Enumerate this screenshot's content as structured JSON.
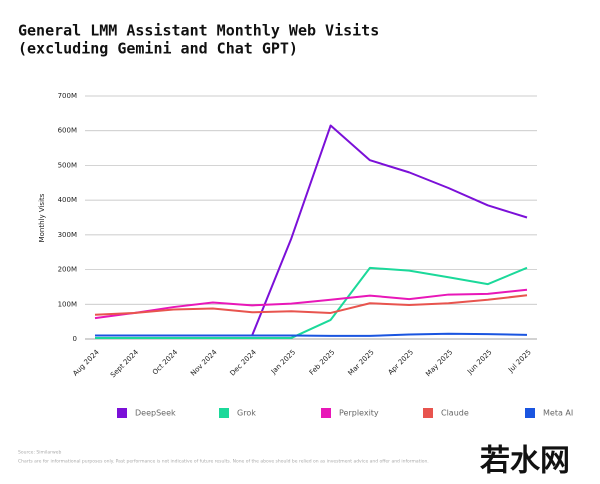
{
  "chart_data": {
    "type": "line",
    "title": "General LMM Assistant Monthly Web Visits",
    "subtitle": "(excluding Gemini and Chat GPT)",
    "y_label": "Monthly Visits",
    "categories": [
      "Aug 2024",
      "Sept 2024",
      "Oct 2024",
      "Nov 2024",
      "Dec 2024",
      "Jan 2025",
      "Feb 2025",
      "Mar 2025",
      "Apr 2025",
      "May 2025",
      "Jun 2025",
      "Jul 2025"
    ],
    "series": [
      {
        "name": "DeepSeek",
        "color": "#7b10d8",
        "values": [
          null,
          null,
          null,
          null,
          10000000,
          290000000,
          615000000,
          515000000,
          480000000,
          435000000,
          385000000,
          350000000
        ]
      },
      {
        "name": "Grok",
        "color": "#1bd99a",
        "values": [
          3000000,
          3000000,
          3000000,
          3000000,
          3000000,
          3000000,
          55000000,
          205000000,
          197000000,
          178000000,
          158000000,
          205000000
        ]
      },
      {
        "name": "Perplexity",
        "color": "#e817b8",
        "values": [
          60000000,
          75000000,
          92000000,
          105000000,
          97000000,
          102000000,
          113000000,
          125000000,
          115000000,
          128000000,
          130000000,
          142000000
        ]
      },
      {
        "name": "Claude",
        "color": "#e8544e",
        "values": [
          70000000,
          75000000,
          85000000,
          88000000,
          77000000,
          80000000,
          75000000,
          103000000,
          98000000,
          103000000,
          113000000,
          126000000
        ]
      },
      {
        "name": "Meta AI",
        "color": "#1a55e0",
        "values": [
          10000000,
          10000000,
          10000000,
          10000000,
          10000000,
          10000000,
          9000000,
          9000000,
          13000000,
          15000000,
          14000000,
          12000000
        ]
      }
    ],
    "ylim": [
      0,
      700000000
    ],
    "yticks": [
      0,
      {
        "value": 100000000,
        "label": "100M"
      },
      {
        "value": 200000000,
        "label": "200M"
      },
      {
        "value": 300000000,
        "label": "300M"
      },
      {
        "value": 400000000,
        "label": "400M"
      },
      {
        "value": 500000000,
        "label": "500M"
      },
      {
        "value": 600000000,
        "label": "600M"
      },
      {
        "value": 700000000,
        "label": "700M"
      }
    ],
    "grid": true,
    "source": "Source: Similarweb",
    "note": "Charts are for informational purposes only. Past performance is not indicative of future results. None of the above should be relied on as investment advice and offer and information.",
    "watermark": "若水网"
  }
}
